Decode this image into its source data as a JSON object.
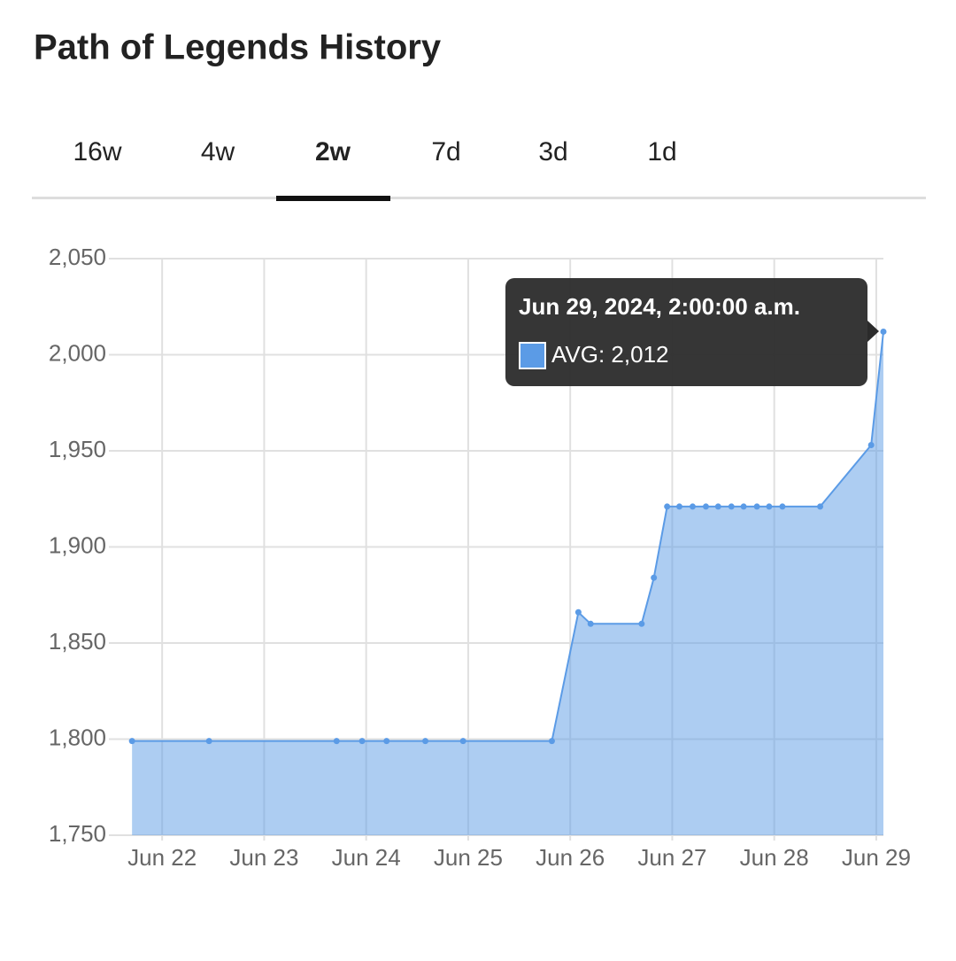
{
  "header": {
    "title": "Path of Legends History"
  },
  "tabs": {
    "items": [
      "16w",
      "4w",
      "2w",
      "7d",
      "3d",
      "1d"
    ],
    "selected": 2
  },
  "chart_data": {
    "type": "area",
    "series": [
      {
        "name": "AVG",
        "color": "#5b9be6",
        "x": [
          21.705,
          22.46,
          23.71,
          23.96,
          24.2,
          24.58,
          24.95,
          25.82,
          26.08,
          26.2,
          26.7,
          26.82,
          26.95,
          27.07,
          27.2,
          27.33,
          27.45,
          27.58,
          27.7,
          27.83,
          27.95,
          28.08,
          28.45,
          28.95,
          29.07
        ],
        "values": [
          1799,
          1799,
          1799,
          1799,
          1799,
          1799,
          1799,
          1799,
          1866,
          1860,
          1860,
          1884,
          1921,
          1921,
          1921,
          1921,
          1921,
          1921,
          1921,
          1921,
          1921,
          1921,
          1921,
          1953,
          2012
        ]
      }
    ],
    "xlim": [
      21.53,
      29.07
    ],
    "xticks": [
      {
        "value": 22,
        "label": "Jun 22"
      },
      {
        "value": 23,
        "label": "Jun 23"
      },
      {
        "value": 24,
        "label": "Jun 24"
      },
      {
        "value": 25,
        "label": "Jun 25"
      },
      {
        "value": 26,
        "label": "Jun 26"
      },
      {
        "value": 27,
        "label": "Jun 27"
      },
      {
        "value": 28,
        "label": "Jun 28"
      },
      {
        "value": 29,
        "label": "Jun 29"
      }
    ],
    "ylim": [
      1750,
      2050
    ],
    "yticks": [
      {
        "value": 1750,
        "label": "1,750"
      },
      {
        "value": 1800,
        "label": "1,800"
      },
      {
        "value": 1850,
        "label": "1,850"
      },
      {
        "value": 1900,
        "label": "1,900"
      },
      {
        "value": 1950,
        "label": "1,950"
      },
      {
        "value": 2000,
        "label": "2,000"
      },
      {
        "value": 2050,
        "label": "2,050"
      }
    ],
    "grid": true,
    "tooltip": {
      "title": "Jun 29, 2024, 2:00:00 a.m.",
      "text": "AVG: 2,012"
    }
  }
}
